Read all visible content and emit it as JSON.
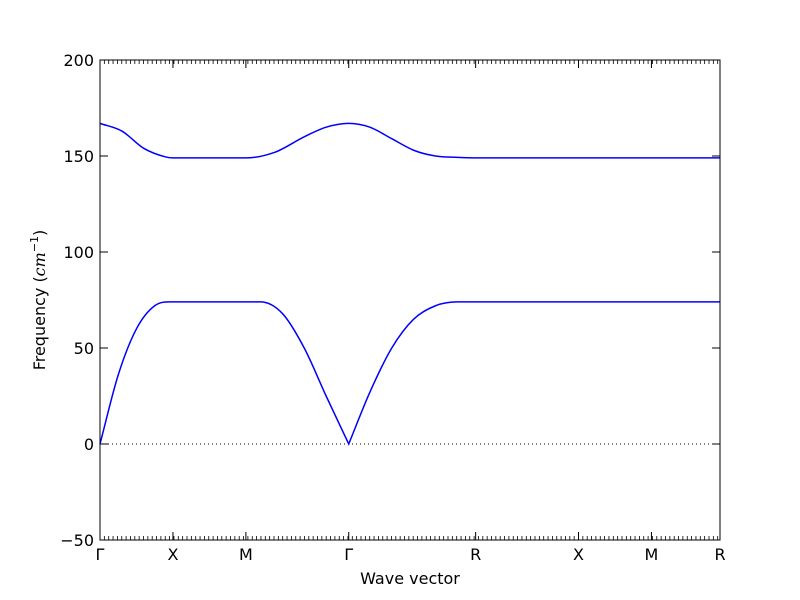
{
  "chart_data": {
    "type": "line",
    "xlabel": "Wave vector",
    "ylabel_prefix": "Frequency (",
    "ylabel_math": "cm",
    "ylabel_sup": "−1",
    "ylabel_suffix": ")",
    "ylim": [
      -50,
      200
    ],
    "xlim": [
      0,
      8.5
    ],
    "yticks": [
      -50,
      0,
      50,
      100,
      150,
      200
    ],
    "ytick_labels": [
      "−50",
      "0",
      "50",
      "100",
      "150",
      "200"
    ],
    "xticks": [
      {
        "label": "Γ",
        "x": 0
      },
      {
        "label": "X",
        "x": 1.0
      },
      {
        "label": "M",
        "x": 2.0
      },
      {
        "label": "Γ",
        "x": 3.41
      },
      {
        "label": "R",
        "x": 5.15
      },
      {
        "label": "X",
        "x": 6.56
      },
      {
        "label": "M",
        "x": 7.56
      },
      {
        "label": "R",
        "x": 8.5
      }
    ],
    "zero_line": true,
    "line_color": "#0000ff",
    "series": [
      {
        "x": [
          0,
          0.25,
          0.5,
          0.75,
          1.0,
          2.0,
          2.2,
          2.5,
          2.8,
          3.1,
          3.41,
          3.7,
          4.0,
          4.3,
          4.6,
          4.9,
          5.15,
          8.5
        ],
        "values": [
          0,
          36,
          60,
          72,
          74,
          74,
          74,
          68,
          50,
          25,
          0,
          27,
          50,
          65,
          72,
          74,
          74,
          74
        ]
      },
      {
        "x": [
          0,
          0.3,
          0.6,
          0.9,
          1.0,
          2.0,
          2.4,
          2.8,
          3.1,
          3.41,
          3.7,
          4.0,
          4.3,
          4.6,
          4.9,
          5.15,
          8.5
        ],
        "values": [
          167,
          163,
          154,
          149.5,
          149,
          149,
          152,
          160,
          165,
          167,
          165,
          159,
          153,
          150,
          149.3,
          149,
          149
        ]
      }
    ]
  }
}
